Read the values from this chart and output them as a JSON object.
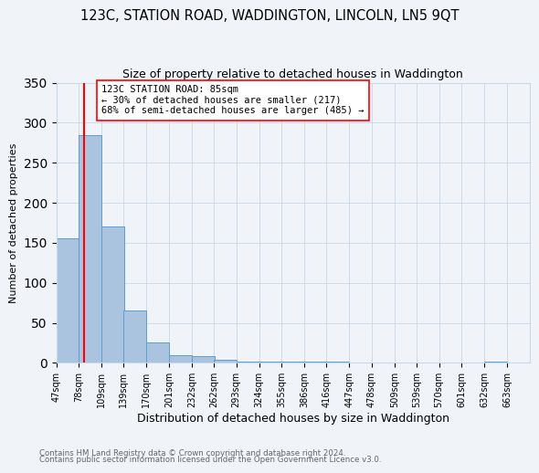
{
  "title": "123C, STATION ROAD, WADDINGTON, LINCOLN, LN5 9QT",
  "subtitle": "Size of property relative to detached houses in Waddington",
  "xlabel": "Distribution of detached houses by size in Waddington",
  "ylabel": "Number of detached properties",
  "bin_edges": [
    47,
    78,
    109,
    139,
    170,
    201,
    232,
    262,
    293,
    324,
    355,
    386,
    416,
    447,
    478,
    509,
    539,
    570,
    601,
    632,
    663
  ],
  "bar_heights": [
    155,
    285,
    170,
    65,
    25,
    10,
    8,
    4,
    2,
    1,
    1,
    1,
    1,
    0,
    0,
    0,
    0,
    0,
    0,
    1
  ],
  "bar_color": "#aac4e0",
  "bar_edge_color": "#5a9fd4",
  "property_size": 85,
  "vline_color": "red",
  "annotation_text": "123C STATION ROAD: 85sqm\n← 30% of detached houses are smaller (217)\n68% of semi-detached houses are larger (485) →",
  "annotation_box_color": "white",
  "annotation_box_edge": "red",
  "ylim": [
    0,
    350
  ],
  "yticks": [
    0,
    50,
    100,
    150,
    200,
    250,
    300,
    350
  ],
  "footnote1": "Contains HM Land Registry data © Crown copyright and database right 2024.",
  "footnote2": "Contains public sector information licensed under the Open Government Licence v3.0.",
  "bg_color": "#f0f4f8",
  "plot_bg_color": "#f0f4f8",
  "grid_color": "#c8d8e8",
  "title_fontsize": 10.5,
  "subtitle_fontsize": 9,
  "tick_label_fontsize": 7,
  "ylabel_fontsize": 8,
  "xlabel_fontsize": 9
}
